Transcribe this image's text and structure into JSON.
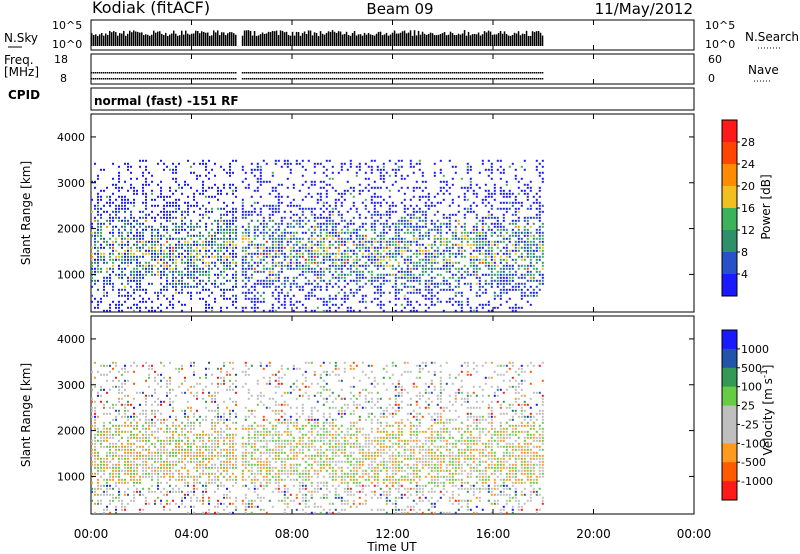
{
  "header": {
    "station": "Kodiak (fitACF)",
    "beam": "Beam 09",
    "date": "11/May/2012"
  },
  "summary_panels": {
    "nsky_label": "N.Sky",
    "nsky_ticks": [
      "10^5",
      "10^0"
    ],
    "nsearch_label": "N.Search",
    "nsearch_ticks": [
      "10^5",
      "10^0"
    ],
    "freq_label_line1": "Freq.",
    "freq_label_line2": "[MHz]",
    "freq_ticks": [
      "18",
      "8"
    ],
    "nave_label": "Nave",
    "nave_ticks": [
      "60",
      "0"
    ],
    "cpid_label": "CPID",
    "cpid_text": "normal (fast) -151 RF"
  },
  "colors": {
    "axis": "#000000",
    "power_scale": [
      "#1a1aff",
      "#2850c8",
      "#2f8f6a",
      "#3cb35a",
      "#f0c020",
      "#ff8c00",
      "#ff4500",
      "#ff1a1a"
    ],
    "velocity_scale": [
      "#ff1a1a",
      "#ff5a00",
      "#ff9a20",
      "#bfbfbf",
      "#bfbfbf",
      "#66cc44",
      "#339955",
      "#2255aa",
      "#1a1aff"
    ]
  },
  "chart_data": [
    {
      "type": "heatmap",
      "name": "power",
      "title": "",
      "xlabel": "Time UT",
      "ylabel": "Slant Range [km]",
      "xlim_hours": [
        0,
        24
      ],
      "ylim": [
        180,
        4500
      ],
      "x_ticks": [
        "00:00",
        "04:00",
        "08:00",
        "12:00",
        "16:00",
        "20:00",
        "00:00"
      ],
      "y_ticks": [
        1000,
        2000,
        3000,
        4000
      ],
      "data_coverage_hours": [
        [
          0,
          5.75
        ],
        [
          6.0,
          18.0
        ]
      ],
      "max_range_km": 3500,
      "colorbar": {
        "label": "Power [dB]",
        "ticks": [
          4,
          8,
          12,
          16,
          20,
          24,
          28
        ],
        "range": [
          0,
          32
        ]
      }
    },
    {
      "type": "heatmap",
      "name": "velocity",
      "title": "",
      "xlabel": "Time UT",
      "ylabel": "Slant Range [km]",
      "xlim_hours": [
        0,
        24
      ],
      "ylim": [
        180,
        4500
      ],
      "x_ticks": [
        "00:00",
        "04:00",
        "08:00",
        "12:00",
        "16:00",
        "20:00",
        "00:00"
      ],
      "y_ticks": [
        1000,
        2000,
        3000,
        4000
      ],
      "data_coverage_hours": [
        [
          0,
          5.75
        ],
        [
          6.0,
          18.0
        ]
      ],
      "max_range_km": 3500,
      "colorbar": {
        "label": "Velocity [m s^-1]",
        "ticks": [
          1000,
          500,
          100,
          25,
          -25,
          -100,
          -500,
          -1000
        ]
      }
    }
  ]
}
